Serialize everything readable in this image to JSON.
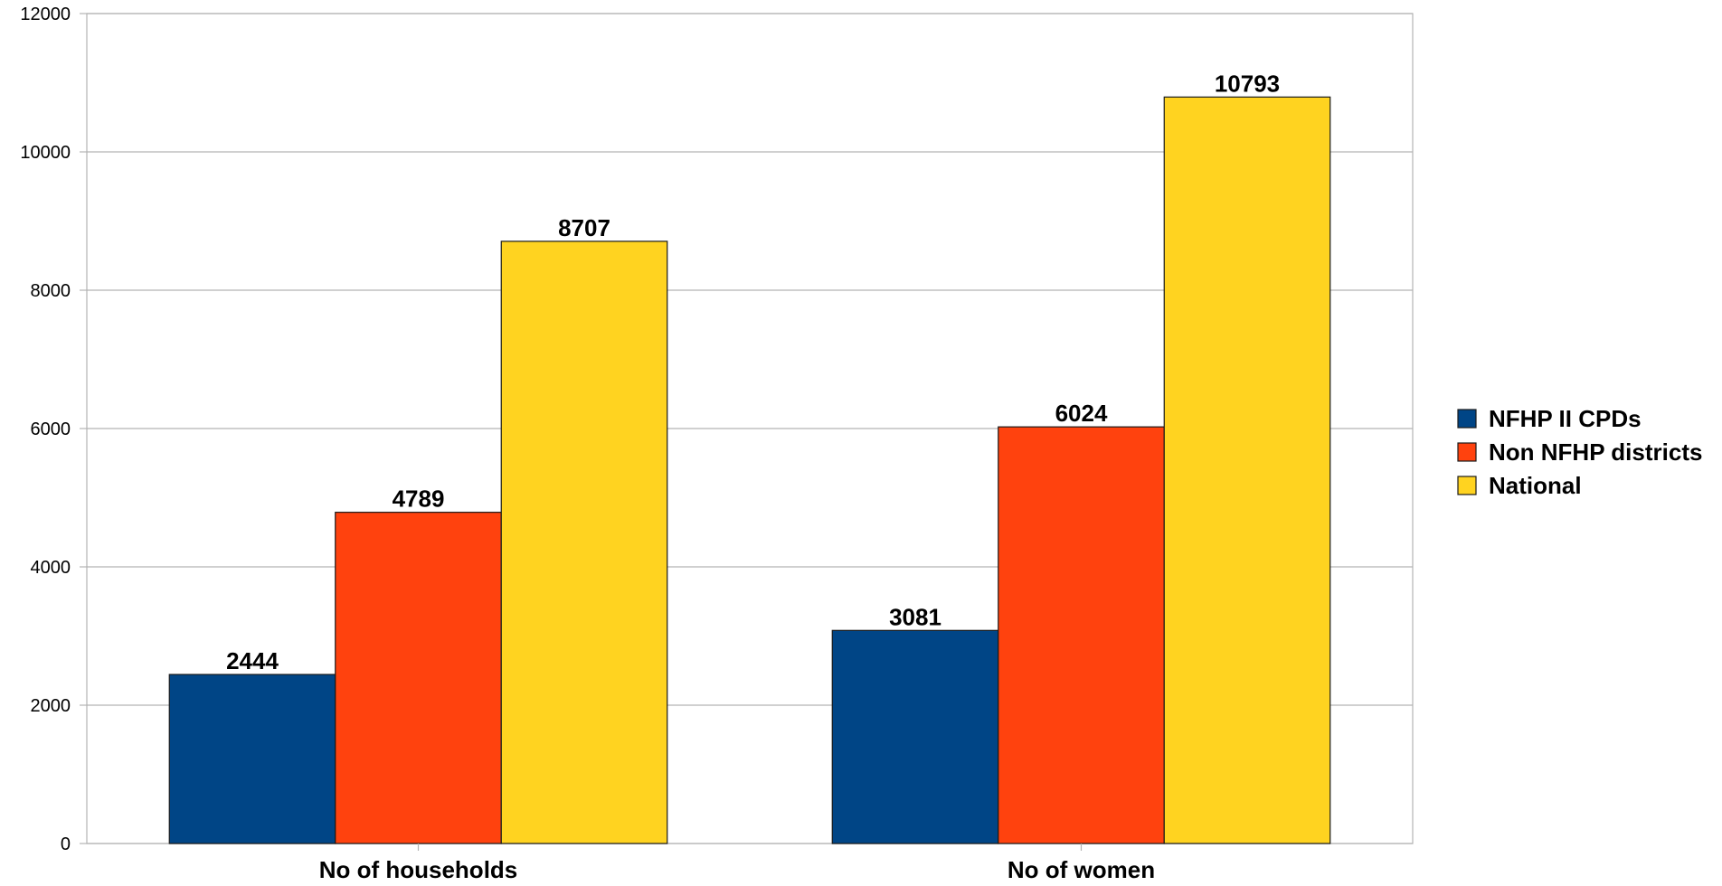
{
  "chart_data": {
    "type": "bar",
    "categories": [
      "No of households",
      "No of women"
    ],
    "series": [
      {
        "name": "NFHP II CPDs",
        "color": "#004586",
        "values": [
          2444,
          3081
        ]
      },
      {
        "name": "Non NFHP districts",
        "color": "#ff420e",
        "values": [
          4789,
          6024
        ]
      },
      {
        "name": "National",
        "color": "#ffd320",
        "values": [
          8707,
          10793
        ]
      }
    ],
    "ylim": [
      0,
      12000
    ],
    "yticks": [
      0,
      2000,
      4000,
      6000,
      8000,
      10000,
      12000
    ],
    "grid": true,
    "legend": "right",
    "title": "",
    "xlabel": "",
    "ylabel": ""
  }
}
